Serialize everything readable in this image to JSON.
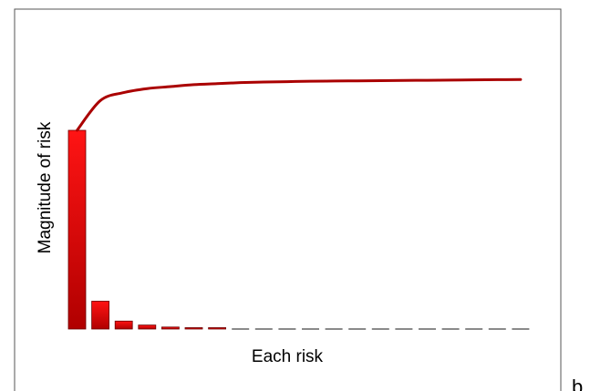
{
  "panel_letter": "b",
  "chart_data": {
    "type": "bar",
    "title": "",
    "xlabel": "Each risk",
    "ylabel": "Magnitude of risk",
    "ylim": [
      0,
      100
    ],
    "grid": false,
    "legend": "none",
    "bar_color": "#cc0000",
    "bar_highlight": "#ff1a1a",
    "line_color": "#aa0000",
    "series": [
      {
        "type": "bar",
        "values": [
          100,
          14,
          4,
          2,
          1,
          0.5,
          0.3,
          0,
          0,
          0,
          0,
          0,
          0,
          0,
          0,
          0,
          0,
          0,
          0,
          0
        ]
      },
      {
        "type": "line",
        "values": [
          100,
          115,
          119,
          121,
          122,
          123,
          123.5,
          124,
          124.3,
          124.5,
          124.7,
          124.8,
          124.9,
          125,
          125.1,
          125.2,
          125.3,
          125.4,
          125.5,
          125.6
        ]
      }
    ]
  }
}
